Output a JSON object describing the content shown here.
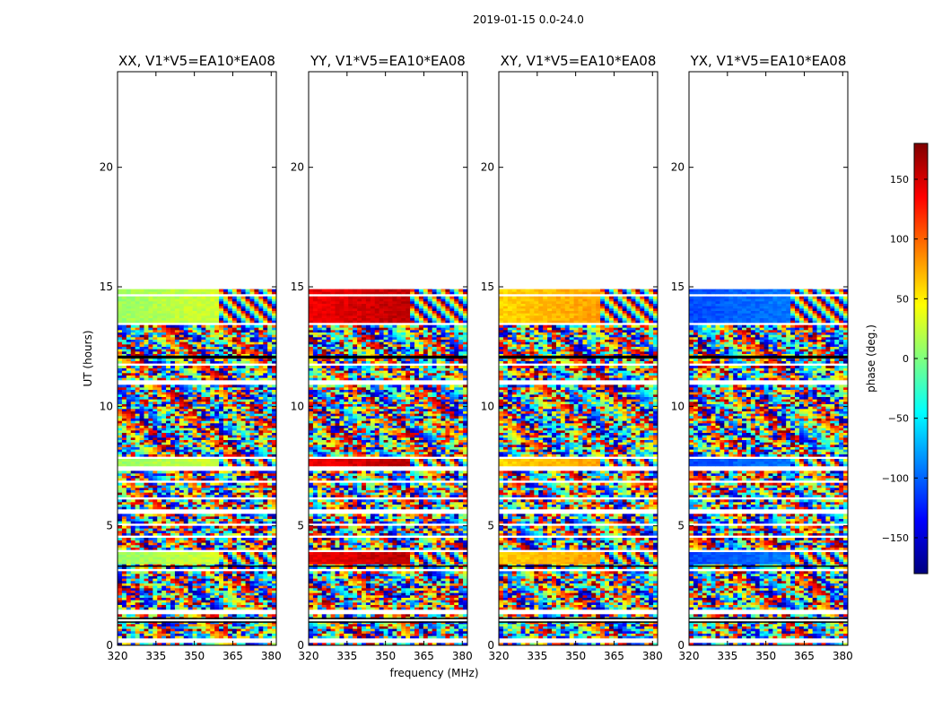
{
  "suptitle": "2019-01-15 0.0-24.0",
  "chart_data": {
    "type": "heatmap",
    "title": "2019-01-15 0.0-24.0",
    "xlabel": "frequency (MHz)",
    "ylabel": "UT (hours)",
    "xlim": [
      320,
      382
    ],
    "ylim": [
      0,
      24
    ],
    "xticks": [
      320,
      335,
      350,
      365,
      380
    ],
    "yticks": [
      0,
      5,
      10,
      15,
      20
    ],
    "colorbar": {
      "label": "phase (deg.)",
      "range": [
        -180,
        180
      ],
      "ticks": [
        -150,
        -100,
        -50,
        0,
        50,
        100,
        150
      ],
      "colormap": "jet",
      "jet_colors": [
        "#00007f",
        "#0000ff",
        "#007fff",
        "#00ffff",
        "#7fff7f",
        "#ffff00",
        "#ff7f00",
        "#ff0000",
        "#7f0000"
      ]
    },
    "data_extent_ut": [
      0,
      14.9
    ],
    "panels": [
      {
        "title": "XX, V1*V5=EA10*EA08",
        "id": "xx",
        "base_phase": 10,
        "high_ut_phase": 10
      },
      {
        "title": "YY, V1*V5=EA10*EA08",
        "id": "yy",
        "base_phase": 140,
        "high_ut_phase": 140
      },
      {
        "title": "XY, V1*V5=EA10*EA08",
        "id": "xy",
        "base_phase": 60,
        "high_ut_phase": 60
      },
      {
        "title": "YX, V1*V5=EA10*EA08",
        "id": "yx",
        "base_phase": -110,
        "high_ut_phase": -110
      }
    ]
  }
}
